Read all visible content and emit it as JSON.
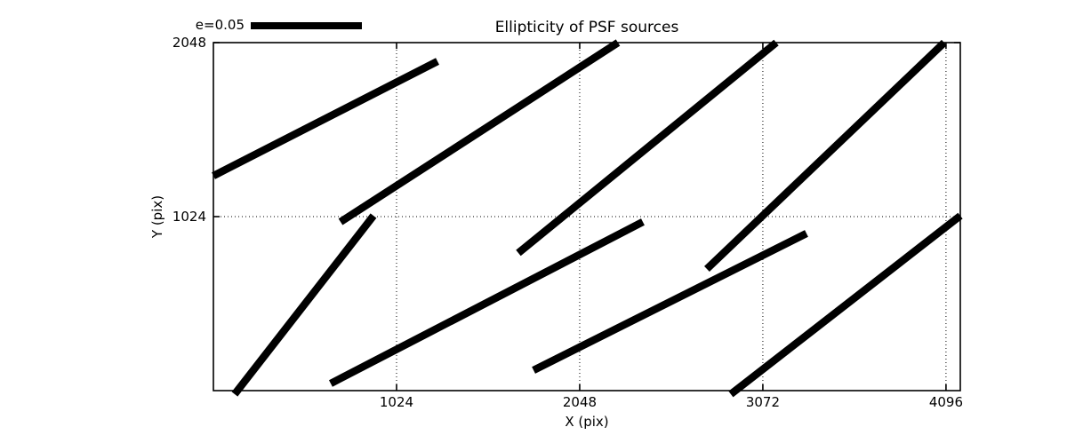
{
  "title": "Ellipticity of PSF sources",
  "legend": {
    "label": "e=0.05"
  },
  "axes": {
    "xlabel": "X (pix)",
    "ylabel": "Y (pix)"
  },
  "colors": {
    "foreground": "#000000",
    "background": "#ffffff"
  },
  "chart_data": {
    "type": "line-segments",
    "note": "ellipticity whisker plot; each segment's length/angle encodes PSF ellipticity, legend bar = e=0.05",
    "title": "Ellipticity of PSF sources",
    "xlabel": "X (pix)",
    "ylabel": "Y (pix)",
    "xlim": [
      0,
      4176
    ],
    "ylim": [
      0,
      2048
    ],
    "xticks": [
      1024,
      2048,
      3072,
      4096
    ],
    "yticks": [
      1024,
      2048
    ],
    "grid": "dotted",
    "legend": {
      "label": "e=0.05"
    },
    "segments": [
      {
        "x1": 0,
        "y1": 1264,
        "x2": 1253,
        "y2": 1938
      },
      {
        "x1": 711,
        "y1": 993,
        "x2": 2262,
        "y2": 2048
      },
      {
        "x1": 1705,
        "y1": 810,
        "x2": 3147,
        "y2": 2048
      },
      {
        "x1": 2759,
        "y1": 716,
        "x2": 4086,
        "y2": 2048
      },
      {
        "x1": 119,
        "y1": -21,
        "x2": 895,
        "y2": 1029
      },
      {
        "x1": 656,
        "y1": 42,
        "x2": 2401,
        "y2": 993
      },
      {
        "x1": 1790,
        "y1": 120,
        "x2": 3316,
        "y2": 925
      },
      {
        "x1": 2893,
        "y1": -21,
        "x2": 4176,
        "y2": 1029
      }
    ]
  }
}
